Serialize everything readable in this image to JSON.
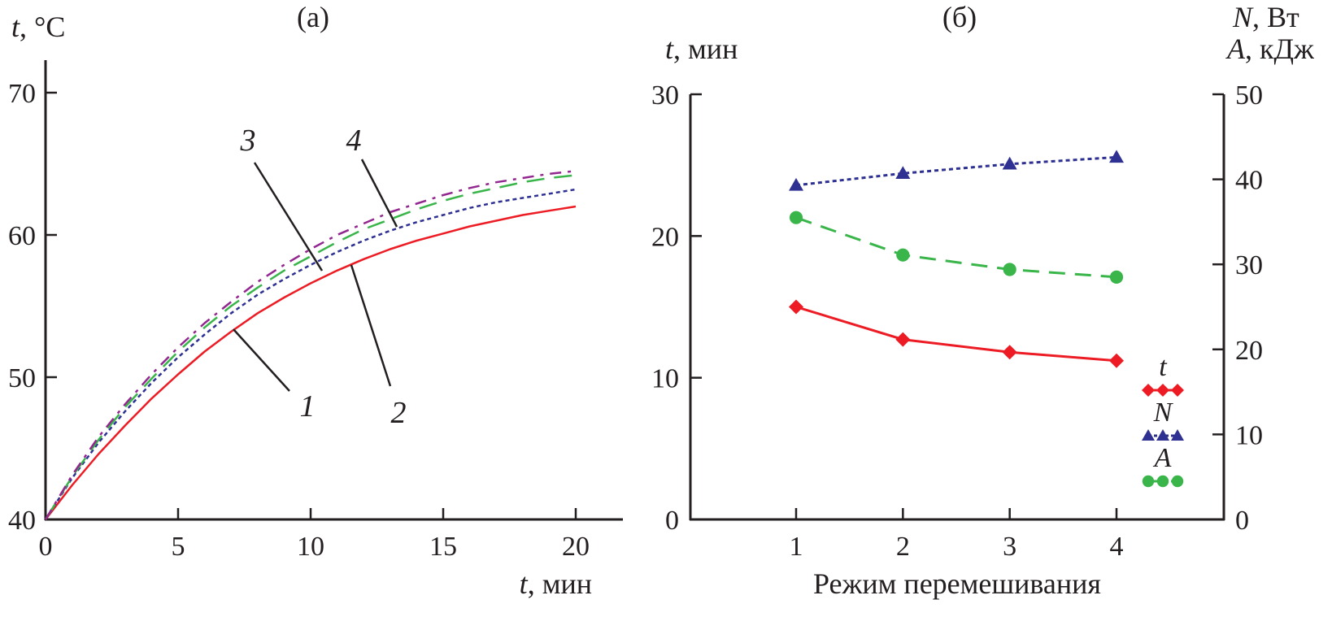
{
  "chart_data": [
    {
      "type": "line",
      "panel_label": "(а)",
      "ylabel_var": "t",
      "ylabel_unit": ", °C",
      "xlabel_var": "t",
      "xlabel_unit": ", мин",
      "xlim": [
        0,
        21.5
      ],
      "ylim": [
        40,
        72
      ],
      "xticks": [
        "0",
        "5",
        "10",
        "15",
        "20"
      ],
      "xtick_values": [
        0,
        5,
        10,
        15,
        20
      ],
      "yticks": [
        "40",
        "50",
        "60",
        "70"
      ],
      "ytick_values": [
        40,
        50,
        60,
        70
      ],
      "grid": false,
      "x": [
        0,
        1,
        2,
        3,
        4,
        5,
        6,
        7,
        8,
        9,
        10,
        11,
        12,
        13,
        14,
        15,
        16,
        17,
        18,
        19,
        20
      ],
      "series": [
        {
          "name": "1",
          "color": "#ed1c24",
          "dash": "solid",
          "values": [
            40.0,
            42.4,
            44.6,
            46.6,
            48.5,
            50.2,
            51.8,
            53.2,
            54.5,
            55.6,
            56.6,
            57.5,
            58.3,
            59.0,
            59.6,
            60.1,
            60.6,
            61.0,
            61.4,
            61.7,
            62.0
          ]
        },
        {
          "name": "2",
          "color": "#2e3192",
          "dash": "dotted",
          "values": [
            40.0,
            42.9,
            45.4,
            47.6,
            49.6,
            51.4,
            53.0,
            54.5,
            55.8,
            56.9,
            57.9,
            58.8,
            59.6,
            60.3,
            60.9,
            61.4,
            61.9,
            62.3,
            62.6,
            62.9,
            63.2
          ]
        },
        {
          "name": "3",
          "color": "#39b54a",
          "dash": "dashed",
          "values": [
            40.0,
            43.0,
            45.6,
            47.9,
            49.9,
            51.8,
            53.5,
            55.0,
            56.3,
            57.5,
            58.5,
            59.5,
            60.4,
            61.1,
            61.8,
            62.4,
            62.9,
            63.3,
            63.7,
            64.0,
            64.2
          ]
        },
        {
          "name": "4",
          "color": "#92278f",
          "dash": "dashdot",
          "values": [
            40.0,
            43.1,
            45.8,
            48.1,
            50.2,
            52.1,
            53.8,
            55.3,
            56.7,
            57.9,
            59.0,
            60.0,
            60.8,
            61.6,
            62.2,
            62.8,
            63.3,
            63.7,
            64.0,
            64.3,
            64.5
          ]
        }
      ],
      "annotations": [
        "1",
        "2",
        "3",
        "4"
      ]
    },
    {
      "type": "line",
      "panel_label": "(б)",
      "xlabel": "Режим перемешивания",
      "ylabel_left_var": "t",
      "ylabel_left_unit": ", мин",
      "ylabel_right_line1_var": "N",
      "ylabel_right_line1_unit": ", Вт",
      "ylabel_right_line2_var": "A",
      "ylabel_right_line2_unit": ", кДж",
      "categories": [
        "1",
        "2",
        "3",
        "4"
      ],
      "category_values": [
        1,
        2,
        3,
        4
      ],
      "xlim": [
        0,
        5
      ],
      "ylim_left": [
        0,
        30
      ],
      "ylim_right": [
        0,
        50
      ],
      "yticks_left": [
        "0",
        "10",
        "20",
        "30"
      ],
      "ytick_values_left": [
        0,
        10,
        20,
        30
      ],
      "yticks_right": [
        "0",
        "10",
        "20",
        "30",
        "40",
        "50"
      ],
      "ytick_values_right": [
        0,
        10,
        20,
        30,
        40,
        50
      ],
      "grid": false,
      "series": [
        {
          "name": "t",
          "axis": "left",
          "color": "#ed1c24",
          "marker": "diamond",
          "dash": "solid",
          "values": [
            15.0,
            12.7,
            11.8,
            11.2
          ]
        },
        {
          "name": "N",
          "axis": "right",
          "color": "#2e3192",
          "marker": "triangle",
          "dash": "dotted",
          "values": [
            39.3,
            40.7,
            41.8,
            42.6
          ]
        },
        {
          "name": "A",
          "axis": "right",
          "color": "#39b54a",
          "marker": "circle",
          "dash": "dashed",
          "values": [
            35.5,
            31.1,
            29.4,
            28.5
          ]
        }
      ],
      "legend": {
        "placement": "bottom-right",
        "entries": [
          "t",
          "N",
          "A"
        ]
      }
    }
  ]
}
